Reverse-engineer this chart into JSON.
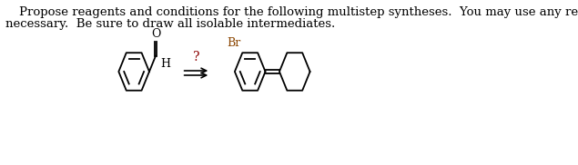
{
  "title_line1": "Propose reagents and conditions for the following multistep syntheses.  You may use any reagents",
  "title_line2": "necessary.  Be sure to draw all isolable intermediates.",
  "text_color": "#000000",
  "background_color": "#ffffff",
  "font_size_text": 9.5,
  "arrow_label": "?",
  "arrow_label_color": "#8B0000",
  "br_label": "Br",
  "br_color": "#8B4500",
  "h_label": "H",
  "o_label": "O"
}
